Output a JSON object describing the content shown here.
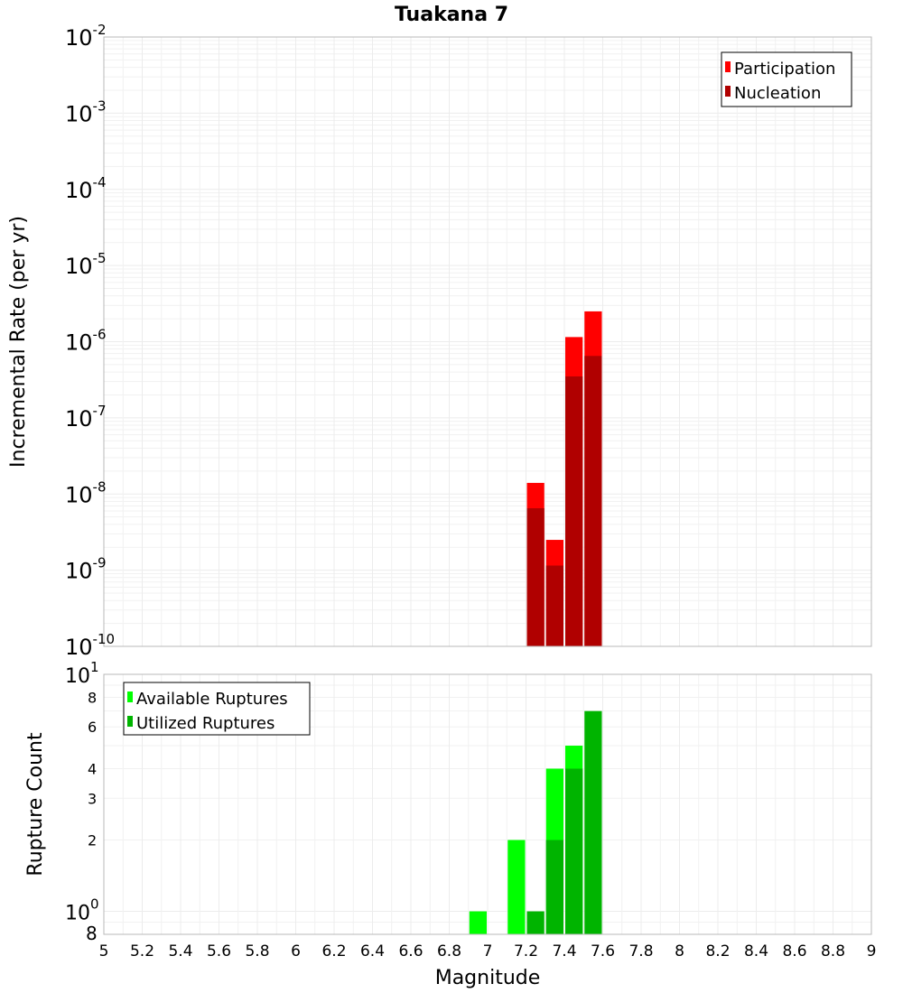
{
  "chart_data": {
    "title": "Tuakana 7",
    "type": "bar",
    "xlabel": "Magnitude",
    "xlim": [
      5,
      9
    ],
    "x_ticks": [
      "5",
      "5.2",
      "5.4",
      "5.6",
      "5.8",
      "6",
      "6.2",
      "6.4",
      "6.6",
      "6.8",
      "7",
      "7.2",
      "7.4",
      "7.6",
      "7.8",
      "8",
      "8.2",
      "8.4",
      "8.6",
      "8.8",
      "9"
    ],
    "bin_width": 0.1,
    "panels": [
      {
        "ylabel": "Incremental Rate (per yr)",
        "yscale": "log",
        "ylim": [
          1e-10,
          0.01
        ],
        "y_ticks": [
          {
            "base": "10",
            "exp": "-10"
          },
          {
            "base": "10",
            "exp": "-9"
          },
          {
            "base": "10",
            "exp": "-8"
          },
          {
            "base": "10",
            "exp": "-7"
          },
          {
            "base": "10",
            "exp": "-6"
          },
          {
            "base": "10",
            "exp": "-5"
          },
          {
            "base": "10",
            "exp": "-4"
          },
          {
            "base": "10",
            "exp": "-3"
          },
          {
            "base": "10",
            "exp": "-2"
          }
        ],
        "grid": true,
        "legend_position": "top-right",
        "series": [
          {
            "name": "Participation",
            "color": "#ff0000",
            "x": [
              7.25,
              7.35,
              7.45,
              7.55
            ],
            "values": [
              1.4e-08,
              2.5e-09,
              1.15e-06,
              2.5e-06
            ]
          },
          {
            "name": "Nucleation",
            "color": "#b00000",
            "x": [
              7.25,
              7.35,
              7.45,
              7.55
            ],
            "values": [
              6.5e-09,
              1.15e-09,
              3.5e-07,
              6.5e-07
            ]
          }
        ]
      },
      {
        "ylabel": "Rupture Count",
        "yscale": "log",
        "ylim": [
          0.8,
          10
        ],
        "y_ticks": [
          {
            "value": 0.8,
            "base": "8",
            "exp": ""
          },
          {
            "value": 1,
            "base": "10",
            "exp": "0"
          },
          {
            "value": 2,
            "base": "2",
            "exp": ""
          },
          {
            "value": 3,
            "base": "3",
            "exp": ""
          },
          {
            "value": 4,
            "base": "4",
            "exp": ""
          },
          {
            "value": 6,
            "base": "6",
            "exp": ""
          },
          {
            "value": 8,
            "base": "8",
            "exp": ""
          },
          {
            "value": 10,
            "base": "10",
            "exp": "1"
          }
        ],
        "grid": true,
        "legend_position": "top-left",
        "series": [
          {
            "name": "Available Ruptures",
            "color": "#00ff00",
            "x": [
              6.95,
              7.15,
              7.35,
              7.45
            ],
            "values": [
              1,
              2,
              4,
              5
            ]
          },
          {
            "name": "Utilized Ruptures",
            "color": "#00b400",
            "x": [
              7.25,
              7.35,
              7.45,
              7.55
            ],
            "values": [
              1,
              2,
              4,
              7
            ]
          }
        ]
      }
    ]
  }
}
